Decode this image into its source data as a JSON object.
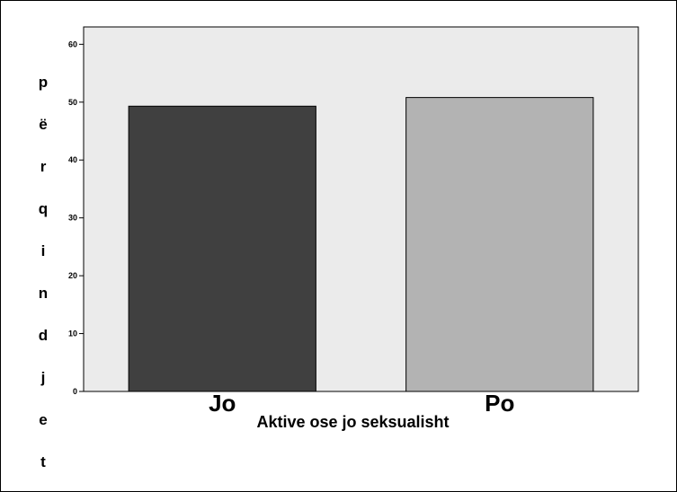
{
  "chart_data": {
    "type": "bar",
    "categories": [
      "Jo",
      "Po"
    ],
    "values": [
      49.3,
      50.8
    ],
    "colors": [
      "#404040",
      "#b3b3b3"
    ],
    "xlabel": "Aktive ose jo seksualisht",
    "ylabel": "përqindjet",
    "ylim": [
      0,
      63
    ],
    "yticks": [
      0,
      10,
      20,
      30,
      40,
      50,
      60
    ],
    "grid": false,
    "plot_background": "#ebebeb"
  }
}
